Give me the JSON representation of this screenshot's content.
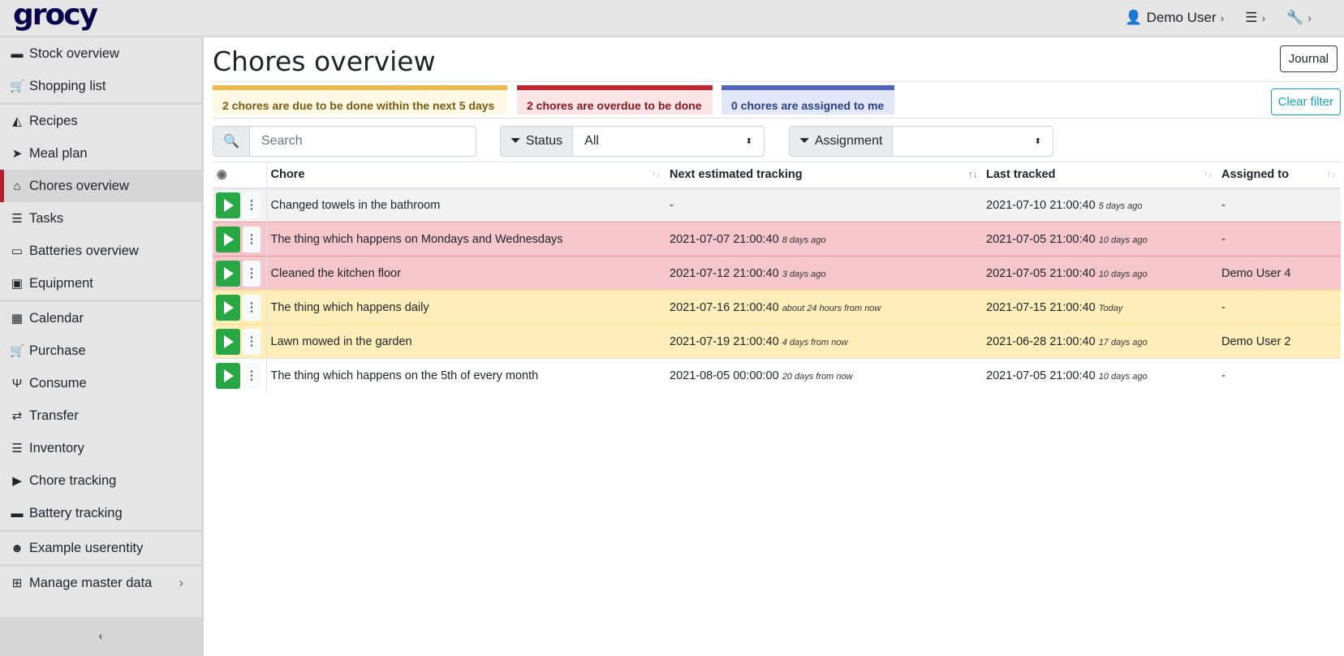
{
  "app": {
    "logo": "grocy"
  },
  "topnav": {
    "user": "Demo User"
  },
  "sidebar": {
    "items": [
      {
        "label": "Stock overview",
        "icon": "box-icon",
        "glyph": "▬"
      },
      {
        "label": "Shopping list",
        "icon": "cart-icon",
        "glyph": "🛒"
      },
      {
        "label": "Recipes",
        "icon": "pizza-icon",
        "glyph": "◭"
      },
      {
        "label": "Meal plan",
        "icon": "paper-plane-icon",
        "glyph": "➤"
      },
      {
        "label": "Chores overview",
        "icon": "home-icon",
        "glyph": "⌂"
      },
      {
        "label": "Tasks",
        "icon": "tasks-icon",
        "glyph": "☰"
      },
      {
        "label": "Batteries overview",
        "icon": "battery-icon",
        "glyph": "▭"
      },
      {
        "label": "Equipment",
        "icon": "toolbox-icon",
        "glyph": "▣"
      },
      {
        "label": "Calendar",
        "icon": "calendar-icon",
        "glyph": "▦"
      },
      {
        "label": "Purchase",
        "icon": "cart-plus-icon",
        "glyph": "🛒"
      },
      {
        "label": "Consume",
        "icon": "utensils-icon",
        "glyph": "Ψ"
      },
      {
        "label": "Transfer",
        "icon": "exchange-icon",
        "glyph": "⇄"
      },
      {
        "label": "Inventory",
        "icon": "list-icon",
        "glyph": "☰"
      },
      {
        "label": "Chore tracking",
        "icon": "play-icon",
        "glyph": "▶"
      },
      {
        "label": "Battery tracking",
        "icon": "car-battery-icon",
        "glyph": "▬"
      },
      {
        "label": "Example userentity",
        "icon": "smile-icon",
        "glyph": "☻"
      },
      {
        "label": "Manage master data",
        "icon": "table-icon",
        "glyph": "⊞"
      }
    ]
  },
  "main": {
    "title": "Chores overview",
    "journal_label": "Journal",
    "clear_filter_label": "Clear filter",
    "alerts": {
      "due": {
        "text": "2 chores are due to be done within the next 5 days",
        "color": "#ecb94b"
      },
      "overdue": {
        "text": "2 chores are overdue to be done",
        "color": "#c3242f"
      },
      "assigned": {
        "text": "0 chores are assigned to me",
        "color": "#4f65c1"
      }
    },
    "search": {
      "placeholder": "Search",
      "value": ""
    },
    "status_filter": {
      "label": "Status",
      "value": "All"
    },
    "assignment_filter": {
      "label": "Assignment",
      "value": ""
    },
    "table": {
      "headers": [
        "Chore",
        "Next estimated tracking",
        "Last tracked",
        "Assigned to"
      ],
      "rows": [
        {
          "state": "muted",
          "chore": "Changed towels in the bathroom",
          "next": "-",
          "next_rel": "",
          "last": "2021-07-10 21:00:40",
          "last_rel": "5 days ago",
          "assigned": "-"
        },
        {
          "state": "danger",
          "chore": "The thing which happens on Mondays and Wednesdays",
          "next": "2021-07-07 21:00:40",
          "next_rel": "8 days ago",
          "last": "2021-07-05 21:00:40",
          "last_rel": "10 days ago",
          "assigned": "-"
        },
        {
          "state": "danger",
          "chore": "Cleaned the kitchen floor",
          "next": "2021-07-12 21:00:40",
          "next_rel": "3 days ago",
          "last": "2021-07-05 21:00:40",
          "last_rel": "10 days ago",
          "assigned": "Demo User 4"
        },
        {
          "state": "warning",
          "chore": "The thing which happens daily",
          "next": "2021-07-16 21:00:40",
          "next_rel": "about 24 hours from now",
          "last": "2021-07-15 21:00:40",
          "last_rel": "Today",
          "assigned": "-"
        },
        {
          "state": "warning",
          "chore": "Lawn mowed in the garden",
          "next": "2021-07-19 21:00:40",
          "next_rel": "4 days from now",
          "last": "2021-06-28 21:00:40",
          "last_rel": "17 days ago",
          "assigned": "Demo User 2"
        },
        {
          "state": "",
          "chore": "The thing which happens on the 5th of every month",
          "next": "2021-08-05 00:00:00",
          "next_rel": "20 days from now",
          "last": "2021-07-05 21:00:40",
          "last_rel": "10 days ago",
          "assigned": "-"
        }
      ]
    }
  }
}
